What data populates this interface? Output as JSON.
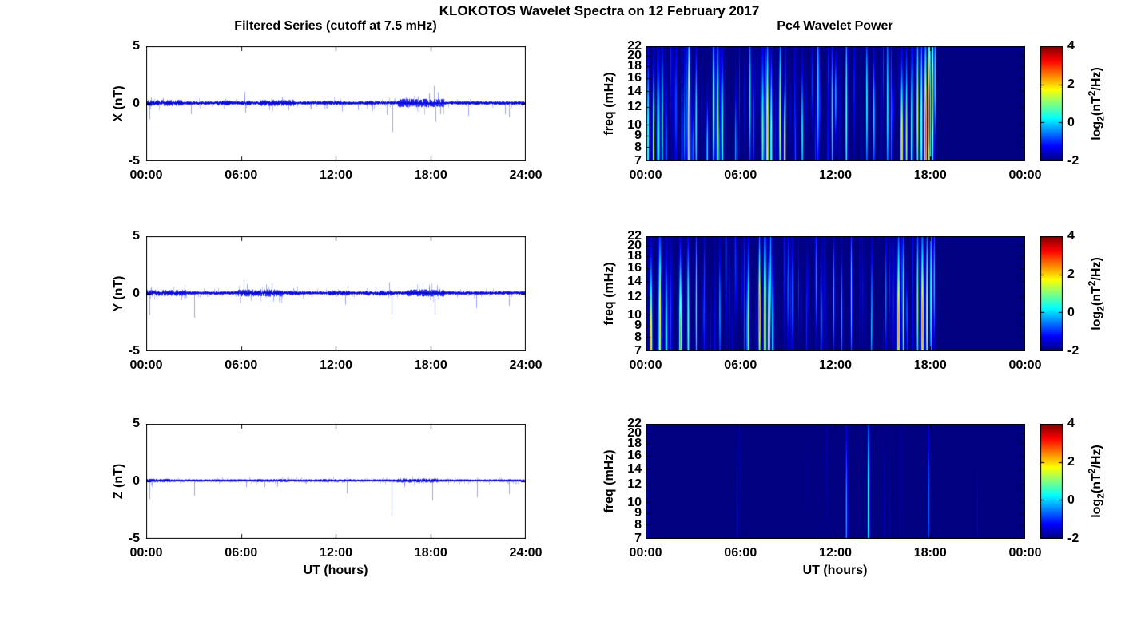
{
  "figure": {
    "title": "KLOKOTOS Wavelet Spectra on 12 February 2017",
    "xlabel": "UT (hours)"
  },
  "colorbar_label": {
    "prefix": "log",
    "sub": "2",
    "mid": "(nT",
    "sup": "2",
    "suffix": "/Hz)"
  },
  "chart_data": [
    {
      "type": "line",
      "panel": "x-filtered-series",
      "title": "Filtered Series (cutoff at 7.5 mHz)",
      "ylabel": "X (nT)",
      "ylim": [
        -5,
        5
      ],
      "ytick_values": [
        5,
        0,
        -5
      ],
      "ytick_labels": [
        "5",
        "0",
        "-5"
      ],
      "xlim_hours": [
        0,
        24
      ],
      "xtick_labels": [
        "00:00",
        "06:00",
        "12:00",
        "18:00",
        "24:00"
      ],
      "line_color": "#0a0ae6",
      "noise_std": 0.07,
      "noise_bursts": [
        [
          0,
          2.3,
          0.12
        ],
        [
          4.4,
          5.3,
          0.1
        ],
        [
          6.0,
          6.6,
          0.1
        ],
        [
          7.2,
          9.3,
          0.12
        ],
        [
          11.2,
          12.3,
          0.09
        ],
        [
          13.8,
          14.5,
          0.09
        ],
        [
          15.9,
          18.8,
          0.17
        ],
        [
          20,
          24,
          0.07
        ]
      ],
      "spikes": [
        [
          0.22,
          -1.35
        ],
        [
          0.28,
          0.55
        ],
        [
          1.05,
          0.5
        ],
        [
          2.85,
          -0.9
        ],
        [
          5.0,
          0.45
        ],
        [
          6.2,
          1.05
        ],
        [
          6.28,
          -0.8
        ],
        [
          7.8,
          -0.55
        ],
        [
          8.6,
          0.6
        ],
        [
          9.0,
          -0.55
        ],
        [
          10.4,
          -0.5
        ],
        [
          12.4,
          -0.65
        ],
        [
          13.4,
          -0.55
        ],
        [
          14.3,
          -0.6
        ],
        [
          15.2,
          -0.95
        ],
        [
          15.55,
          -2.45
        ],
        [
          16.4,
          0.6
        ],
        [
          17.2,
          0.65
        ],
        [
          17.9,
          0.9
        ],
        [
          18.2,
          1.55
        ],
        [
          18.3,
          -1.6
        ],
        [
          18.45,
          1.0
        ],
        [
          18.6,
          -0.9
        ],
        [
          20.35,
          -1.05
        ],
        [
          22.7,
          -0.9
        ],
        [
          22.95,
          -1.15
        ]
      ],
      "seed": 101
    },
    {
      "type": "line",
      "panel": "y-filtered-series",
      "ylabel": "Y (nT)",
      "ylim": [
        -5,
        5
      ],
      "ytick_values": [
        5,
        0,
        -5
      ],
      "ytick_labels": [
        "5",
        "0",
        "-5"
      ],
      "xlim_hours": [
        0,
        24
      ],
      "xtick_labels": [
        "00:00",
        "06:00",
        "12:00",
        "18:00",
        "24:00"
      ],
      "line_color": "#0a0ae6",
      "noise_std": 0.07,
      "noise_bursts": [
        [
          0,
          2.5,
          0.12
        ],
        [
          5.8,
          8.6,
          0.14
        ],
        [
          9,
          10,
          0.09
        ],
        [
          11.5,
          12.8,
          0.1
        ],
        [
          13.8,
          15.6,
          0.11
        ],
        [
          16.5,
          18.8,
          0.14
        ],
        [
          20,
          24,
          0.07
        ]
      ],
      "spikes": [
        [
          0.22,
          -1.85
        ],
        [
          0.3,
          0.5
        ],
        [
          2.2,
          -0.55
        ],
        [
          3.05,
          -2.1
        ],
        [
          6.15,
          1.2
        ],
        [
          6.35,
          0.85
        ],
        [
          6.6,
          -0.6
        ],
        [
          7.6,
          0.8
        ],
        [
          7.95,
          0.9
        ],
        [
          8.05,
          -0.65
        ],
        [
          9.3,
          0.5
        ],
        [
          12.6,
          -0.95
        ],
        [
          14.5,
          0.6
        ],
        [
          15.35,
          1.0
        ],
        [
          15.5,
          -1.8
        ],
        [
          17.9,
          0.65
        ],
        [
          18.25,
          -1.8
        ],
        [
          18.4,
          0.75
        ],
        [
          20.85,
          -1.25
        ],
        [
          22.95,
          -1.05
        ]
      ],
      "seed": 202
    },
    {
      "type": "line",
      "panel": "z-filtered-series",
      "ylabel": "Z (nT)",
      "ylim": [
        -5,
        5
      ],
      "ytick_values": [
        5,
        0,
        -5
      ],
      "ytick_labels": [
        "5",
        "0",
        "-5"
      ],
      "xlim_hours": [
        0,
        24
      ],
      "xtick_labels": [
        "00:00",
        "06:00",
        "12:00",
        "18:00",
        "24:00"
      ],
      "line_color": "#0a0ae6",
      "noise_std": 0.05,
      "noise_bursts": [
        [
          0,
          1.5,
          0.07
        ],
        [
          7,
          9,
          0.06
        ],
        [
          11,
          13,
          0.06
        ],
        [
          15.8,
          18.5,
          0.08
        ]
      ],
      "spikes": [
        [
          0.22,
          -1.55
        ],
        [
          0.35,
          -0.45
        ],
        [
          3.05,
          -1.25
        ],
        [
          6.3,
          -0.5
        ],
        [
          7.5,
          -0.5
        ],
        [
          8.3,
          -0.45
        ],
        [
          12.7,
          -1.05
        ],
        [
          15.5,
          -2.95
        ],
        [
          16.3,
          -0.5
        ],
        [
          18.1,
          -1.65
        ],
        [
          20.9,
          -1.4
        ],
        [
          22.95,
          -1.1
        ]
      ],
      "seed": 303
    },
    {
      "type": "heatmap",
      "panel": "x-wavelet-power",
      "title": "Pc4 Wavelet Power",
      "ylabel": "freq (mHz)",
      "yscale": "log",
      "flim_mHz": [
        7,
        22
      ],
      "ytick_values": [
        22,
        20,
        18,
        16,
        14,
        12,
        10,
        9,
        8,
        7
      ],
      "xlim_hours": [
        0,
        24
      ],
      "xtick_labels": [
        "00:00",
        "06:00",
        "12:00",
        "18:00",
        "00:00"
      ],
      "value_range": [
        -2,
        4
      ],
      "background_value": -2,
      "colorbar": {
        "label": "log2(nT^2/Hz)",
        "ticks": [
          4,
          2,
          0,
          -2
        ],
        "tick_labels": [
          "4",
          "2",
          "0",
          "-2"
        ],
        "range": [
          -2,
          4
        ],
        "colormap": "jet"
      },
      "streaks": [
        [
          0.15,
          0.035,
          8,
          0.5,
          2.8
        ],
        [
          0.5,
          0.04,
          8,
          0.5,
          3.0
        ],
        [
          0.78,
          0.04,
          9,
          0.5,
          3.3
        ],
        [
          1.05,
          0.04,
          10,
          0.5,
          2.9
        ],
        [
          1.3,
          0.03,
          8,
          0.4,
          2.4
        ],
        [
          2.75,
          0.055,
          9,
          0.62,
          4.5
        ],
        [
          3.2,
          0.04,
          10,
          0.45,
          2.8
        ],
        [
          3.9,
          0.03,
          7.5,
          0.35,
          2.7
        ],
        [
          4.3,
          0.05,
          12,
          0.5,
          3.3
        ],
        [
          4.55,
          0.05,
          10,
          0.55,
          3.5
        ],
        [
          4.85,
          0.04,
          9,
          0.5,
          3.0
        ],
        [
          5.7,
          0.03,
          8,
          0.4,
          2.0
        ],
        [
          6.6,
          0.04,
          13,
          0.5,
          2.4
        ],
        [
          7.4,
          0.04,
          9,
          0.5,
          3.0
        ],
        [
          7.7,
          0.05,
          9,
          0.55,
          3.9
        ],
        [
          7.95,
          0.04,
          8,
          0.5,
          4.2
        ],
        [
          8.5,
          0.04,
          10,
          0.5,
          3.0
        ],
        [
          8.8,
          0.04,
          7.5,
          0.4,
          4.4
        ],
        [
          9.9,
          0.03,
          10,
          0.4,
          2.2
        ],
        [
          10.9,
          0.04,
          14,
          0.5,
          2.6
        ],
        [
          11.8,
          0.03,
          10,
          0.4,
          2.2
        ],
        [
          12.7,
          0.04,
          11,
          0.6,
          3.3
        ],
        [
          14.0,
          0.03,
          12,
          0.45,
          2.2
        ],
        [
          14.45,
          0.03,
          10,
          0.4,
          1.9
        ],
        [
          15.3,
          0.04,
          12,
          0.55,
          2.6
        ],
        [
          16.2,
          0.05,
          8,
          0.5,
          4.1
        ],
        [
          16.5,
          0.04,
          9,
          0.5,
          3.4
        ],
        [
          16.85,
          0.04,
          10,
          0.5,
          3.1
        ],
        [
          17.2,
          0.04,
          11,
          0.55,
          3.7
        ],
        [
          17.45,
          0.04,
          10,
          0.55,
          4.0
        ],
        [
          17.7,
          0.05,
          9,
          0.6,
          5.1
        ],
        [
          17.95,
          0.05,
          11,
          0.65,
          5.8
        ],
        [
          18.15,
          0.04,
          13,
          0.55,
          4.7
        ],
        [
          18.3,
          0.03,
          16,
          0.4,
          2.9
        ]
      ],
      "noise_streaks": {
        "count": 80,
        "t_range": [
          0.05,
          18.4
        ],
        "amp_range": [
          0.3,
          1.5
        ],
        "seed": 11
      }
    },
    {
      "type": "heatmap",
      "panel": "y-wavelet-power",
      "ylabel": "freq (mHz)",
      "yscale": "log",
      "flim_mHz": [
        7,
        22
      ],
      "ytick_values": [
        22,
        20,
        18,
        16,
        14,
        12,
        10,
        9,
        8,
        7
      ],
      "xlim_hours": [
        0,
        24
      ],
      "xtick_labels": [
        "00:00",
        "06:00",
        "12:00",
        "18:00",
        "00:00"
      ],
      "value_range": [
        -2,
        4
      ],
      "background_value": -2,
      "colorbar": {
        "label": "log2(nT^2/Hz)",
        "ticks": [
          4,
          2,
          0,
          -2
        ],
        "tick_labels": [
          "4",
          "2",
          "0",
          "-2"
        ],
        "range": [
          -2,
          4
        ],
        "colormap": "jet"
      },
      "streaks": [
        [
          0.35,
          0.05,
          7.5,
          0.5,
          4.5
        ],
        [
          0.9,
          0.05,
          9,
          0.55,
          4.2
        ],
        [
          1.3,
          0.04,
          8,
          0.5,
          3.4
        ],
        [
          2.2,
          0.05,
          8,
          0.5,
          4.6
        ],
        [
          2.7,
          0.04,
          9,
          0.5,
          3.4
        ],
        [
          3.2,
          0.03,
          10,
          0.4,
          2.4
        ],
        [
          4.7,
          0.03,
          10,
          0.4,
          2.0
        ],
        [
          5.3,
          0.02,
          12,
          0.35,
          1.6
        ],
        [
          6.5,
          0.04,
          9,
          0.5,
          3.1
        ],
        [
          7.2,
          0.04,
          11,
          0.5,
          3.3
        ],
        [
          7.55,
          0.055,
          9,
          0.6,
          4.5
        ],
        [
          7.8,
          0.05,
          7.5,
          0.5,
          4.1
        ],
        [
          8.05,
          0.04,
          8,
          0.45,
          3.3
        ],
        [
          9.3,
          0.03,
          12,
          0.4,
          2.0
        ],
        [
          10.8,
          0.03,
          14,
          0.35,
          1.8
        ],
        [
          11.1,
          0.03,
          10,
          0.4,
          2.1
        ],
        [
          11.9,
          0.03,
          12,
          0.4,
          2.0
        ],
        [
          12.4,
          0.03,
          10,
          0.4,
          1.9
        ],
        [
          13.0,
          0.03,
          13,
          0.38,
          1.9
        ],
        [
          14.3,
          0.03,
          11,
          0.4,
          2.0
        ],
        [
          15.2,
          0.03,
          12,
          0.4,
          1.8
        ],
        [
          16.0,
          0.05,
          9,
          0.58,
          4.1
        ],
        [
          16.3,
          0.04,
          10,
          0.5,
          3.2
        ],
        [
          17.2,
          0.04,
          11,
          0.5,
          3.2
        ],
        [
          17.5,
          0.05,
          9,
          0.6,
          4.3
        ],
        [
          17.8,
          0.04,
          10,
          0.55,
          3.9
        ],
        [
          18.05,
          0.04,
          12,
          0.5,
          3.2
        ],
        [
          18.25,
          0.03,
          14,
          0.4,
          2.4
        ]
      ],
      "noise_streaks": {
        "count": 70,
        "t_range": [
          0.05,
          18.4
        ],
        "amp_range": [
          0.3,
          1.4
        ],
        "seed": 22
      }
    },
    {
      "type": "heatmap",
      "panel": "z-wavelet-power",
      "ylabel": "freq (mHz)",
      "yscale": "log",
      "flim_mHz": [
        7,
        22
      ],
      "ytick_values": [
        22,
        20,
        18,
        16,
        14,
        12,
        10,
        9,
        8,
        7
      ],
      "xlim_hours": [
        0,
        24
      ],
      "xtick_labels": [
        "00:00",
        "06:00",
        "12:00",
        "18:00",
        "00:00"
      ],
      "value_range": [
        -2,
        4
      ],
      "background_value": -2,
      "colorbar": {
        "label": "log2(nT^2/Hz)",
        "ticks": [
          4,
          2,
          0,
          -2
        ],
        "tick_labels": [
          "4",
          "2",
          "0",
          "-2"
        ],
        "range": [
          -2,
          4
        ],
        "colormap": "jet"
      },
      "streaks": [
        [
          0.1,
          0.02,
          8,
          0.4,
          1.0
        ],
        [
          5.8,
          0.02,
          9,
          0.4,
          0.7
        ],
        [
          12.7,
          0.04,
          9,
          0.55,
          1.9
        ],
        [
          14.1,
          0.04,
          10,
          0.6,
          3.1
        ],
        [
          17.9,
          0.03,
          10,
          0.5,
          1.5
        ],
        [
          21.0,
          0.02,
          9,
          0.3,
          0.5
        ]
      ],
      "noise_streaks": {
        "count": 8,
        "t_range": [
          0.05,
          18.4
        ],
        "amp_range": [
          0.15,
          0.5
        ],
        "seed": 33
      }
    }
  ]
}
